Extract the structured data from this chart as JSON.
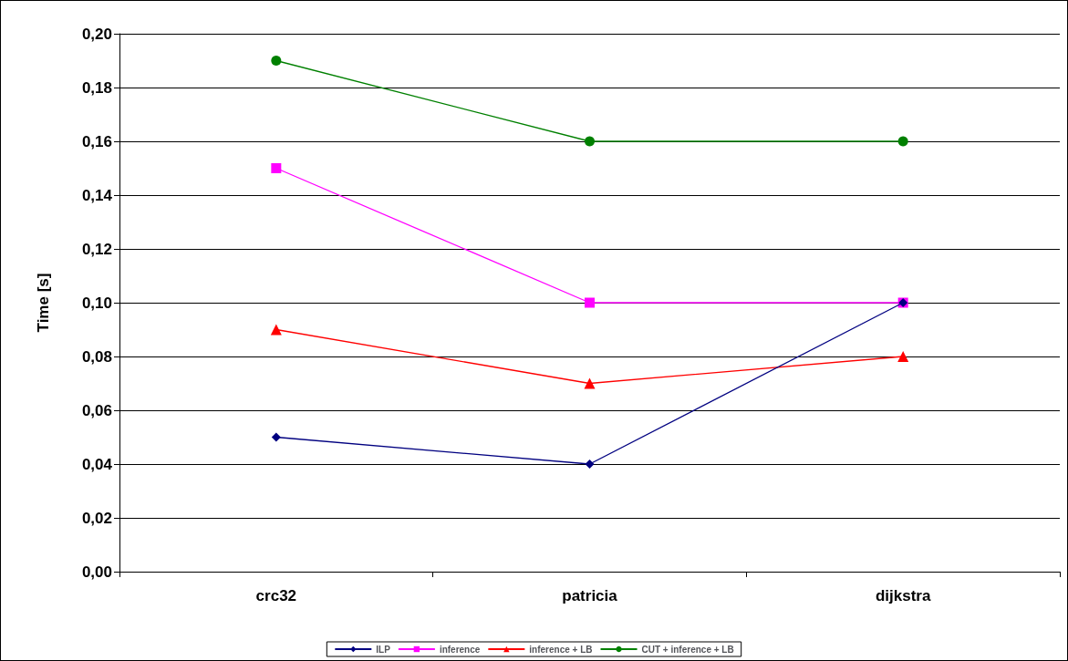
{
  "chart_data": {
    "type": "line",
    "ylabel": "Time [s]",
    "categories": [
      "crc32",
      "patricia",
      "dijkstra"
    ],
    "series": [
      {
        "name": "ILP",
        "color": "#000080",
        "marker": "diamond",
        "values": [
          0.05,
          0.04,
          0.1
        ]
      },
      {
        "name": "inference",
        "color": "#ff00ff",
        "marker": "square",
        "values": [
          0.15,
          0.1,
          0.1
        ]
      },
      {
        "name": "inference + LB",
        "color": "#ff0000",
        "marker": "triangle",
        "values": [
          0.09,
          0.07,
          0.08
        ]
      },
      {
        "name": "CUT + inference + LB",
        "color": "#008000",
        "marker": "circle",
        "values": [
          0.19,
          0.16,
          0.16
        ]
      }
    ],
    "ylim": [
      0,
      0.2
    ],
    "yticks": [
      {
        "value": 0,
        "label": "0,00"
      },
      {
        "value": 0.02,
        "label": "0,02"
      },
      {
        "value": 0.04,
        "label": "0,04"
      },
      {
        "value": 0.06,
        "label": "0,06"
      },
      {
        "value": 0.08,
        "label": "0,08"
      },
      {
        "value": 0.1,
        "label": "0,10"
      },
      {
        "value": 0.12,
        "label": "0,12"
      },
      {
        "value": 0.14,
        "label": "0,14"
      },
      {
        "value": 0.16,
        "label": "0,16"
      },
      {
        "value": 0.18,
        "label": "0,18"
      },
      {
        "value": 0.2,
        "label": "0,20"
      }
    ],
    "grid": "y",
    "legend": "bottom",
    "line_style": "solid"
  }
}
